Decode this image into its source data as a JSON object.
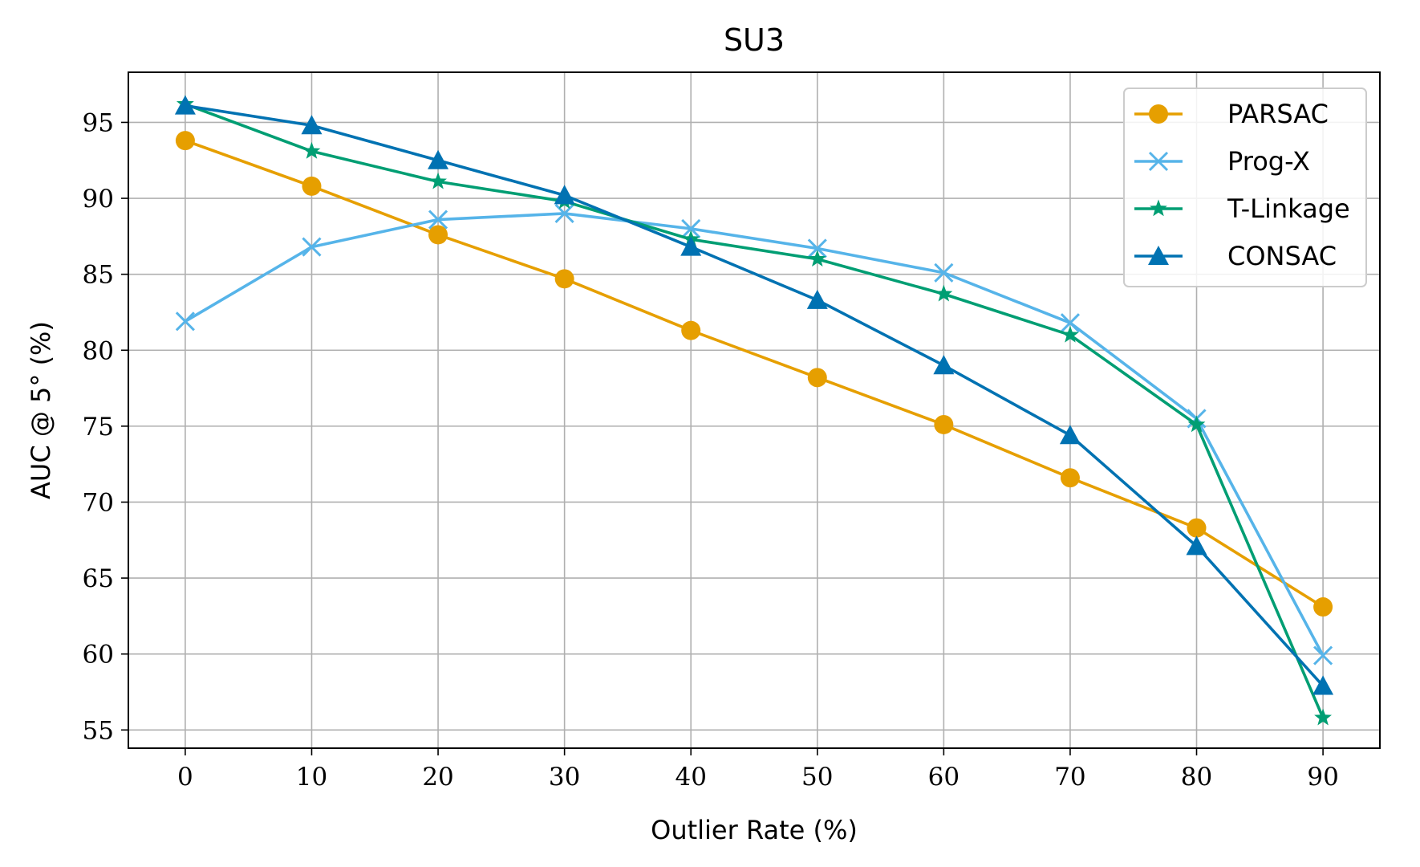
{
  "chart_data": {
    "type": "line",
    "title": "SU3",
    "xlabel": "Outlier Rate (%)",
    "ylabel": "AUC @ 5° (%)",
    "x": [
      0,
      10,
      20,
      30,
      40,
      50,
      60,
      70,
      80,
      90
    ],
    "xticks": [
      "0",
      "10",
      "20",
      "30",
      "40",
      "50",
      "60",
      "70",
      "80",
      "90"
    ],
    "yticks": [
      "55",
      "60",
      "65",
      "70",
      "75",
      "80",
      "85",
      "90",
      "95"
    ],
    "xlim": [
      -4.5,
      94.5
    ],
    "ylim": [
      53.8,
      98.3
    ],
    "grid": true,
    "legend_position": "top-right",
    "series": [
      {
        "name": "PARSAC",
        "color": "#E69F00",
        "marker": "circle",
        "values": [
          93.8,
          90.8,
          87.6,
          84.7,
          81.3,
          78.2,
          75.1,
          71.6,
          68.3,
          63.1
        ]
      },
      {
        "name": "Prog-X",
        "color": "#56B4E9",
        "marker": "x",
        "values": [
          81.9,
          86.8,
          88.6,
          89.0,
          88.0,
          86.7,
          85.1,
          81.8,
          75.5,
          59.9
        ]
      },
      {
        "name": "T-Linkage",
        "color": "#009E73",
        "marker": "star",
        "values": [
          96.2,
          93.1,
          91.1,
          89.8,
          87.3,
          86.0,
          83.7,
          81.0,
          75.1,
          55.8
        ]
      },
      {
        "name": "CONSAC",
        "color": "#0072B2",
        "marker": "triangle",
        "values": [
          96.1,
          94.8,
          92.5,
          90.2,
          86.8,
          83.3,
          79.0,
          74.4,
          67.1,
          57.9
        ]
      }
    ]
  }
}
